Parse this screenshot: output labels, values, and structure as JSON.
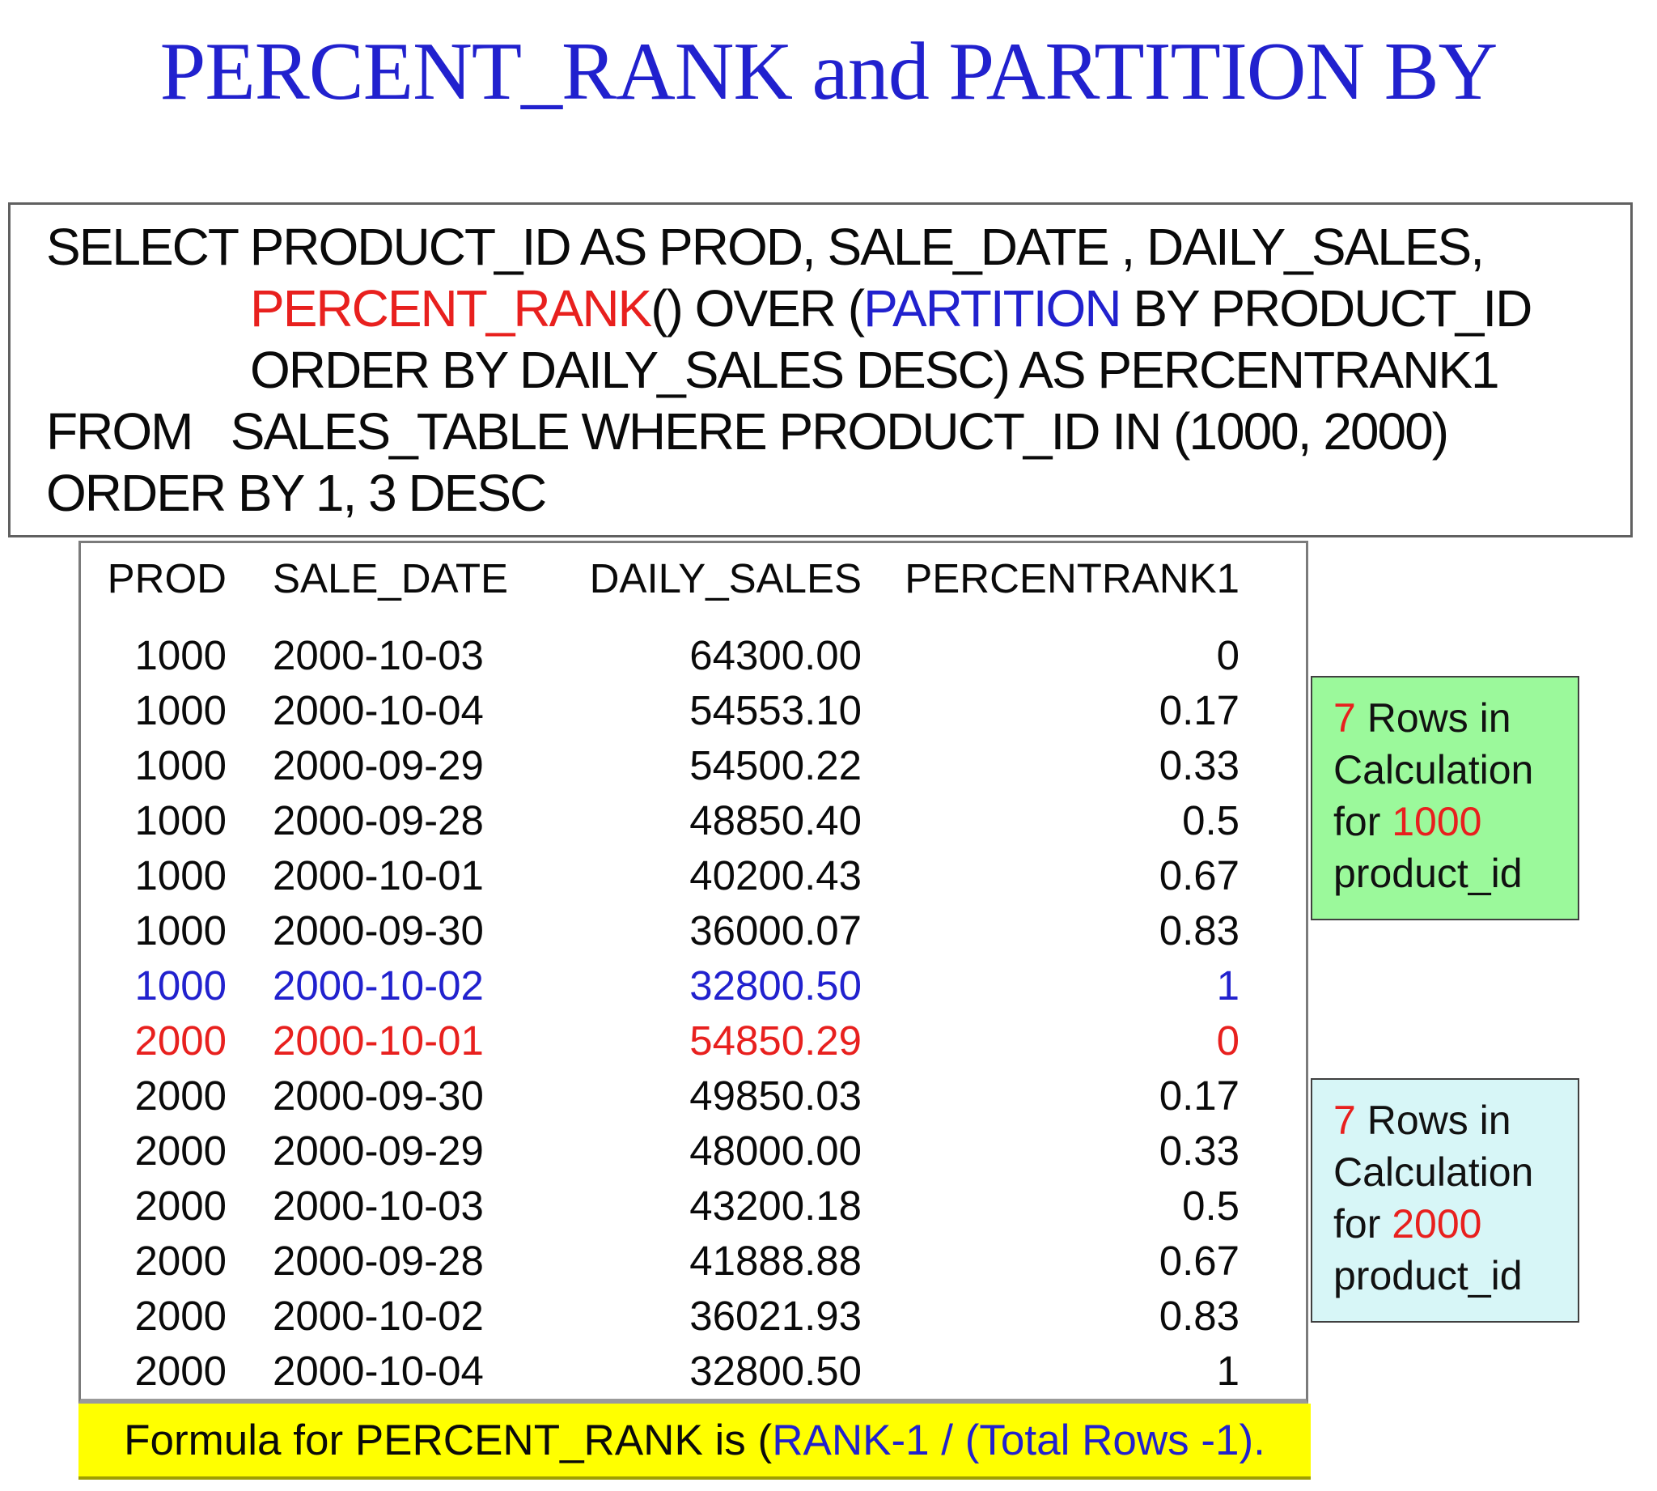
{
  "title": "PERCENT_RANK and PARTITION BY",
  "colors": {
    "blue": "#2121CE",
    "red": "#E8201E",
    "green_box_bg": "#9BF99B",
    "cyan_box_bg": "#D7F6F7",
    "banner_bg": "#FFFF00"
  },
  "sql": {
    "line1": "SELECT PRODUCT_ID AS PROD, SALE_DATE , DAILY_SALES,",
    "line2_function": "PERCENT_RANK",
    "line2_mid": "() OVER (",
    "line2_keyword": "PARTITION",
    "line2_rest": " BY PRODUCT_ID",
    "line3": "ORDER BY DAILY_SALES DESC) AS PERCENTRANK1",
    "line4": "FROM   SALES_TABLE WHERE PRODUCT_ID IN (1000, 2000)",
    "line5": "ORDER BY 1, 3 DESC"
  },
  "table": {
    "headers": [
      "PROD",
      "SALE_DATE",
      "DAILY_SALES",
      "PERCENTRANK1"
    ],
    "rows": [
      {
        "prod": "1000",
        "sale_date": "2000-10-03",
        "daily_sales": "64300.00",
        "percentrank1": "0",
        "color": "black"
      },
      {
        "prod": "1000",
        "sale_date": "2000-10-04",
        "daily_sales": "54553.10",
        "percentrank1": "0.17",
        "color": "black"
      },
      {
        "prod": "1000",
        "sale_date": "2000-09-29",
        "daily_sales": "54500.22",
        "percentrank1": "0.33",
        "color": "black"
      },
      {
        "prod": "1000",
        "sale_date": "2000-09-28",
        "daily_sales": "48850.40",
        "percentrank1": "0.5",
        "color": "black"
      },
      {
        "prod": "1000",
        "sale_date": "2000-10-01",
        "daily_sales": "40200.43",
        "percentrank1": "0.67",
        "color": "black"
      },
      {
        "prod": "1000",
        "sale_date": "2000-09-30",
        "daily_sales": "36000.07",
        "percentrank1": "0.83",
        "color": "black"
      },
      {
        "prod": "1000",
        "sale_date": "2000-10-02",
        "daily_sales": "32800.50",
        "percentrank1": "1",
        "color": "blue"
      },
      {
        "prod": "2000",
        "sale_date": "2000-10-01",
        "daily_sales": "54850.29",
        "percentrank1": "0",
        "color": "red"
      },
      {
        "prod": "2000",
        "sale_date": "2000-09-30",
        "daily_sales": "49850.03",
        "percentrank1": "0.17",
        "color": "black"
      },
      {
        "prod": "2000",
        "sale_date": "2000-09-29",
        "daily_sales": "48000.00",
        "percentrank1": "0.33",
        "color": "black"
      },
      {
        "prod": "2000",
        "sale_date": "2000-10-03",
        "daily_sales": "43200.18",
        "percentrank1": "0.5",
        "color": "black"
      },
      {
        "prod": "2000",
        "sale_date": "2000-09-28",
        "daily_sales": "41888.88",
        "percentrank1": "0.67",
        "color": "black"
      },
      {
        "prod": "2000",
        "sale_date": "2000-10-02",
        "daily_sales": "36021.93",
        "percentrank1": "0.83",
        "color": "black"
      },
      {
        "prod": "2000",
        "sale_date": "2000-10-04",
        "daily_sales": "32800.50",
        "percentrank1": "1",
        "color": "black"
      }
    ]
  },
  "notes": [
    {
      "rows_count": "7",
      "rows_label": " Rows in",
      "line2": "Calculation",
      "for_label": "for ",
      "product_id": "1000",
      "line4": "product_id"
    },
    {
      "rows_count": "7",
      "rows_label": " Rows in",
      "line2": "Calculation",
      "for_label": "for ",
      "product_id": "2000",
      "line4": "product_id"
    }
  ],
  "banner": {
    "prefix": "Formula for PERCENT_RANK is (",
    "formula": "RANK-1 / (Total Rows -1)."
  }
}
